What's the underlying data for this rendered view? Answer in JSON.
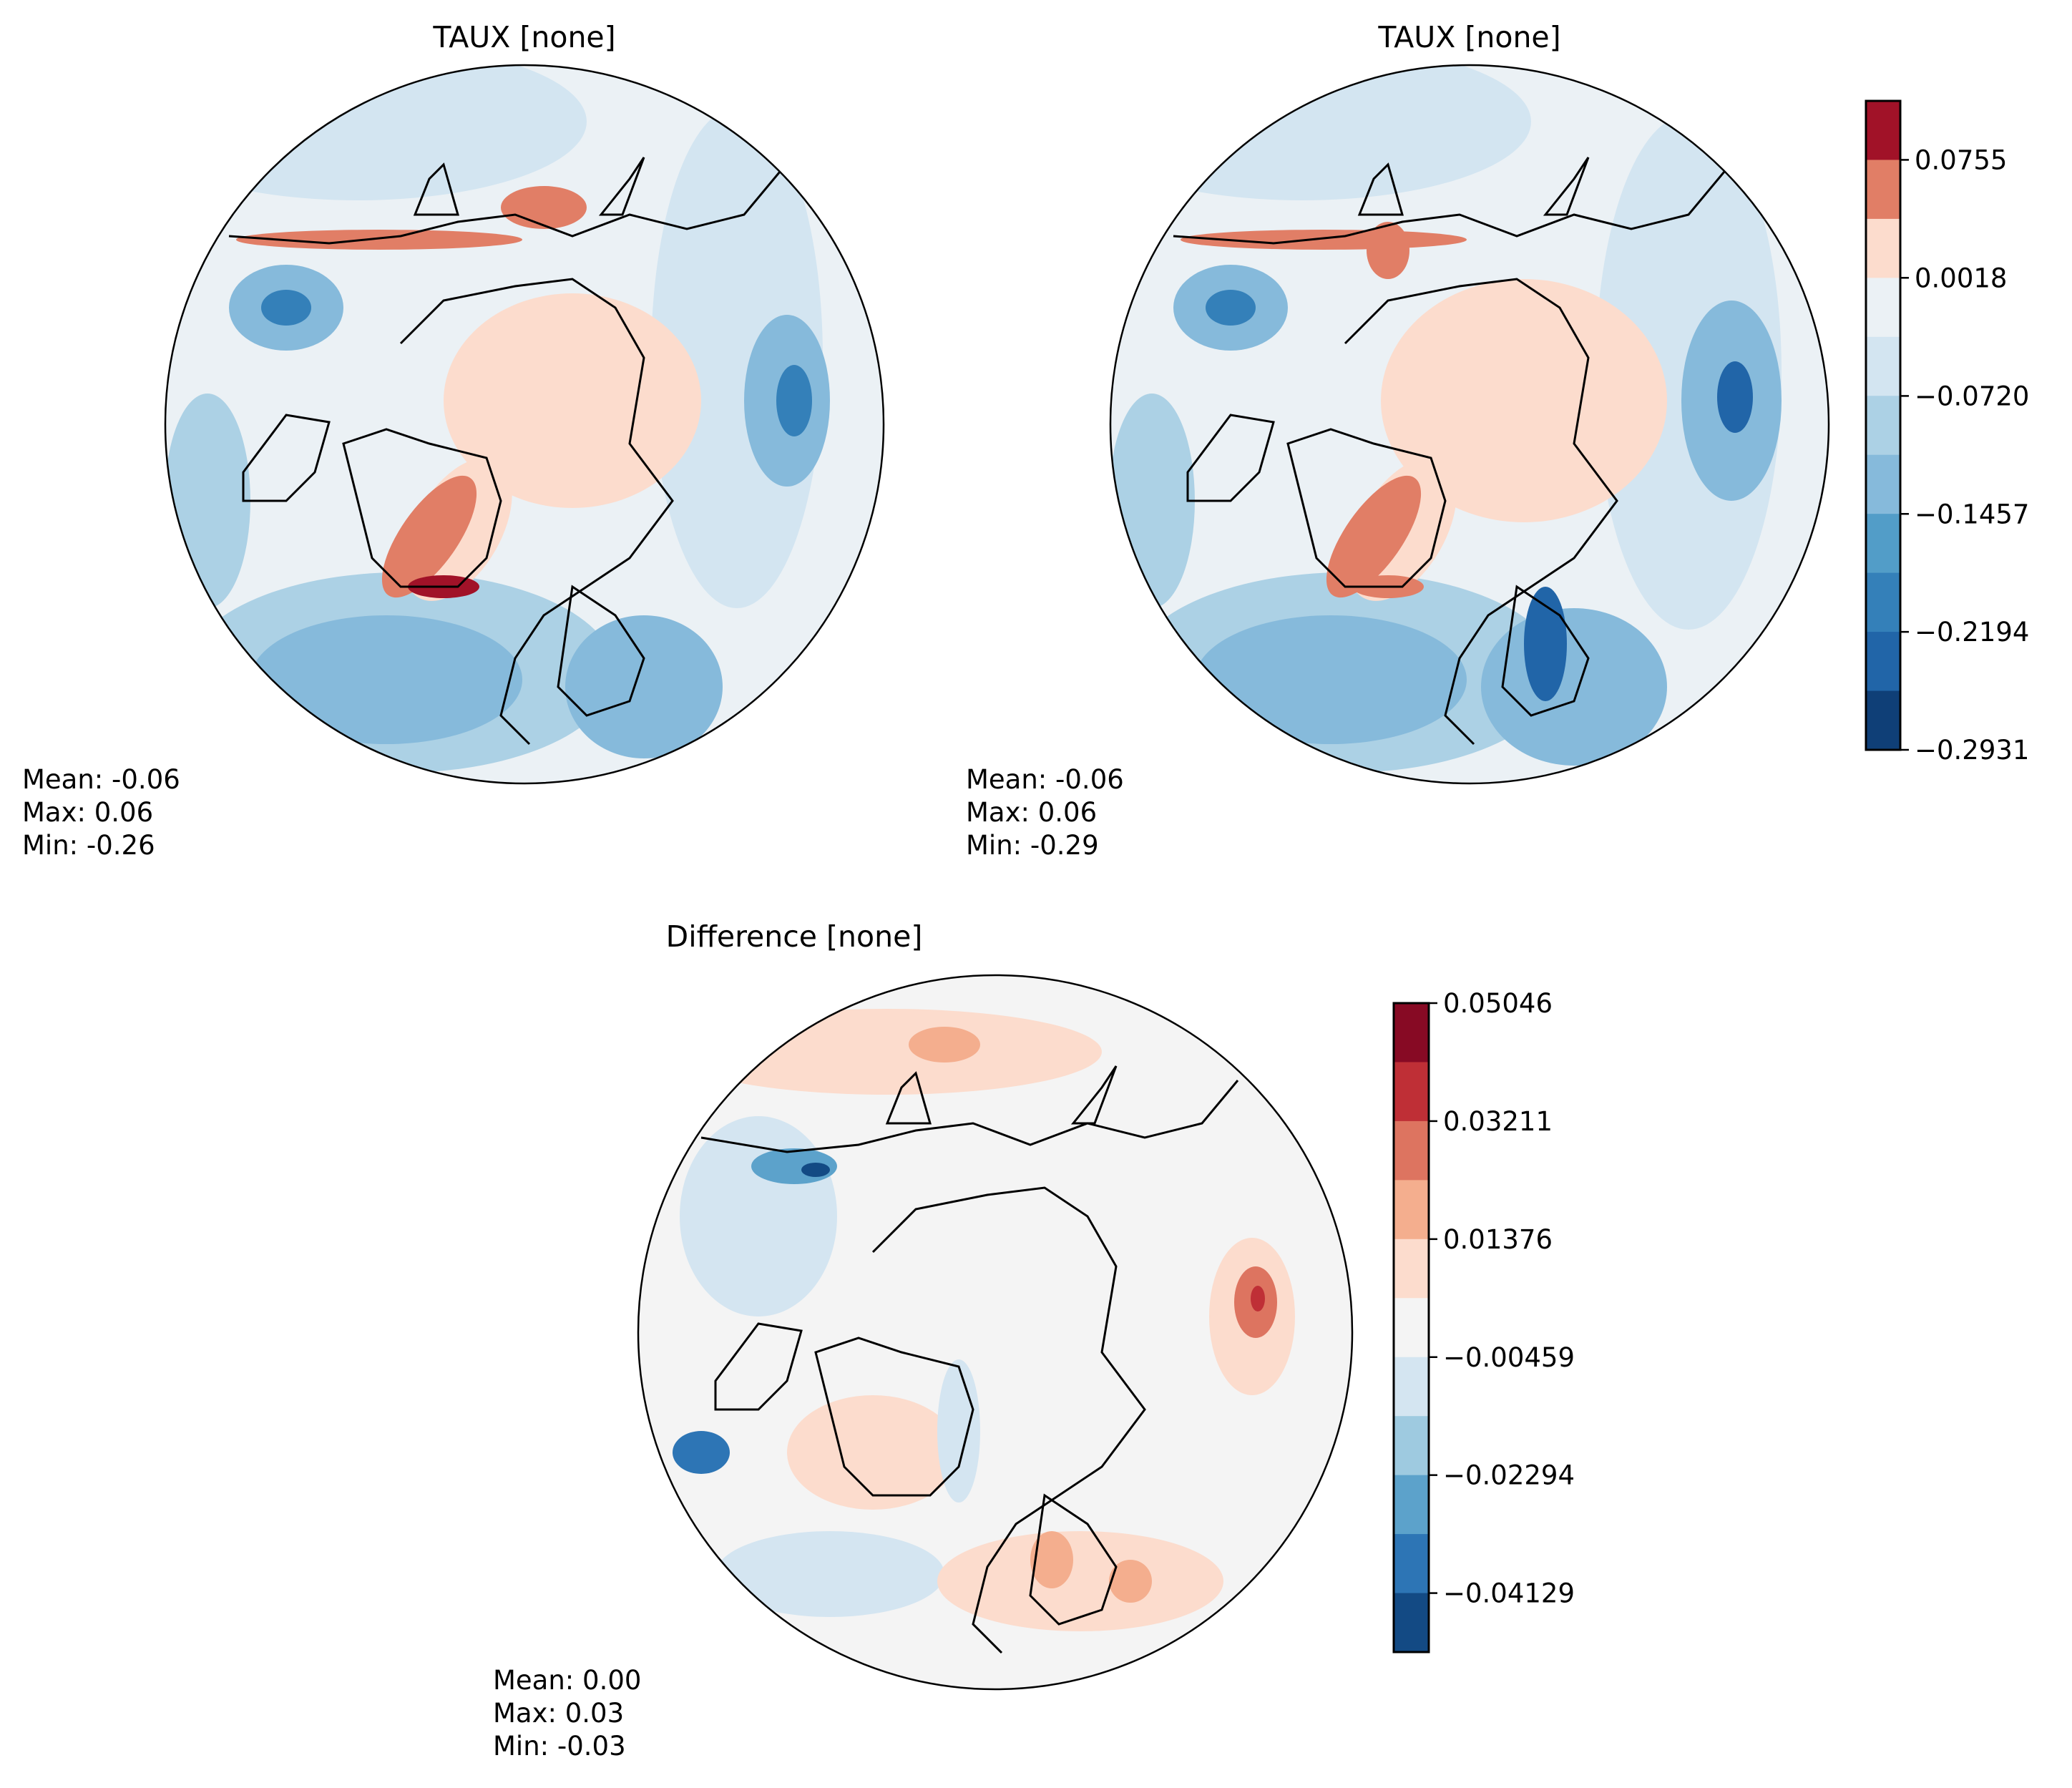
{
  "chart_data": [
    {
      "type": "heatmap",
      "projection": "north-polar-stereographic",
      "title": "TAUX [none]",
      "stats": {
        "mean": "Mean: -0.06",
        "max": "Max:  0.06",
        "min": "Min: -0.26"
      },
      "colorbar": "shared-top"
    },
    {
      "type": "heatmap",
      "projection": "north-polar-stereographic",
      "title": "TAUX [none]",
      "stats": {
        "mean": "Mean: -0.06",
        "max": "Max:  0.06",
        "min": "Min: -0.29"
      },
      "colorbar": "shared-top"
    },
    {
      "type": "heatmap",
      "projection": "north-polar-stereographic",
      "title": "Difference [none]",
      "stats": {
        "mean": "Mean:  0.00",
        "max": "Max:  0.03",
        "min": "Min: -0.03"
      },
      "colorbar": "difference"
    }
  ],
  "colorbars": {
    "top": {
      "range": [
        -0.2931,
        0.11235
      ],
      "levels": 11,
      "tick_labels": [
        "0.0755",
        "0.0018",
        "−0.0720",
        "−0.1457",
        "−0.2194",
        "−0.2931"
      ],
      "tick_values": [
        0.0755,
        0.0018,
        -0.072,
        -0.1457,
        -0.2194,
        -0.2931
      ],
      "colors": [
        "#a11228",
        "#e17e66",
        "#fcdccd",
        "#ebf1f5",
        "#d3e5f1",
        "#acd1e5",
        "#86badb",
        "#529dc8",
        "#3480b9",
        "#2165a8",
        "#0f3f77"
      ]
    },
    "difference": {
      "range": [
        -0.05046,
        0.05046
      ],
      "levels": 11,
      "tick_labels": [
        "0.05046",
        "0.03211",
        "0.01376",
        "−0.00459",
        "−0.02294",
        "−0.04129"
      ],
      "tick_values": [
        0.05046,
        0.03211,
        0.01376,
        -0.00459,
        -0.02294,
        -0.04129
      ],
      "colors": [
        "#870a24",
        "#bf2f36",
        "#dd7460",
        "#f4ae8e",
        "#fcdccd",
        "#f4f4f4",
        "#d4e5f1",
        "#9ecae0",
        "#5ca2cb",
        "#2d75b5",
        "#134a84"
      ]
    }
  }
}
